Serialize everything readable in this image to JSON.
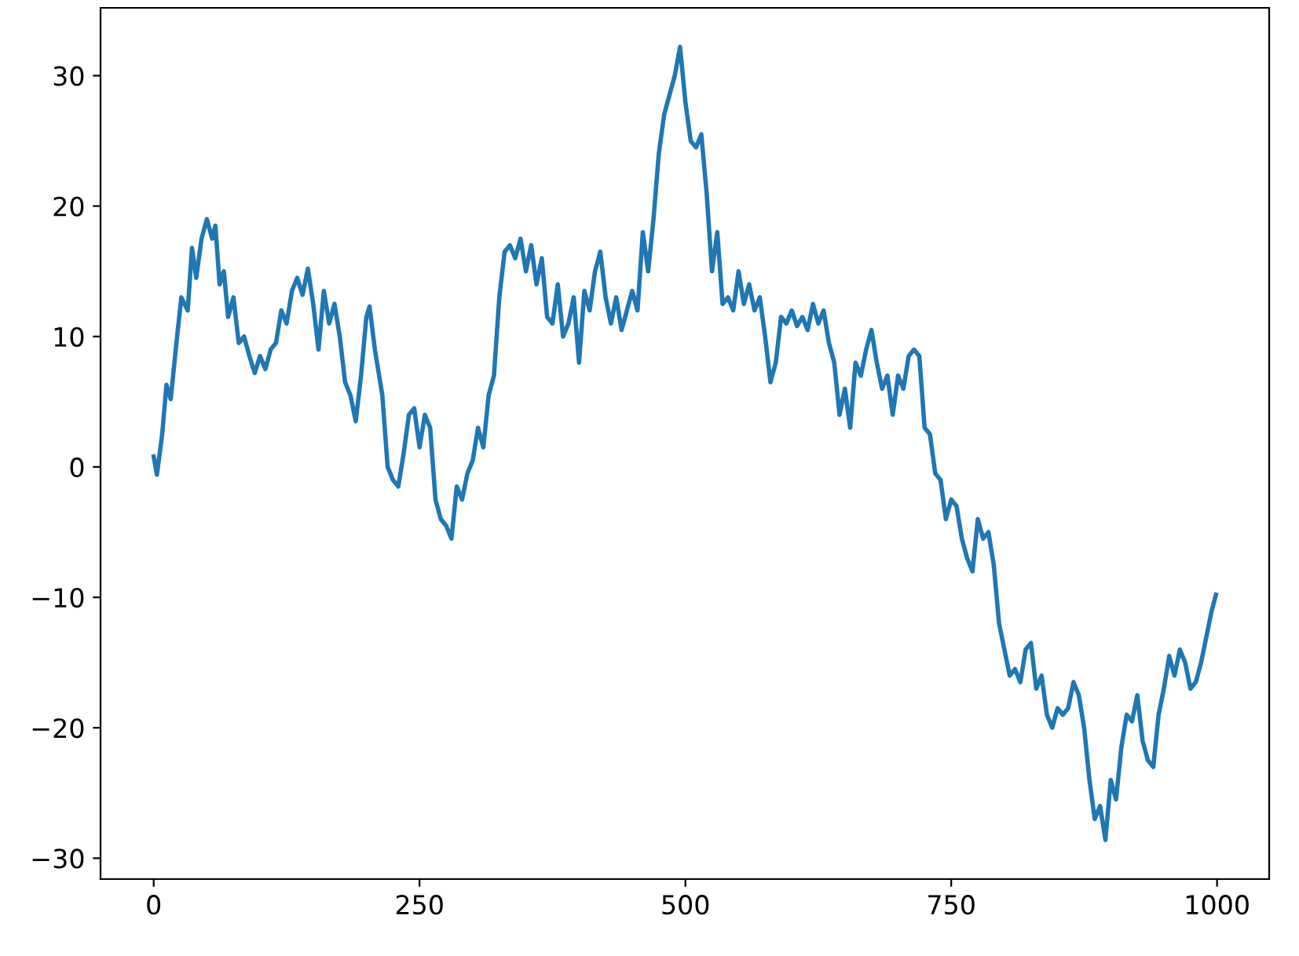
{
  "chart_data": {
    "type": "line",
    "x": [
      0,
      3,
      8,
      12,
      16,
      22,
      26,
      32,
      36,
      40,
      45,
      50,
      55,
      58,
      62,
      66,
      70,
      75,
      80,
      85,
      90,
      95,
      100,
      105,
      110,
      115,
      120,
      125,
      130,
      135,
      140,
      145,
      150,
      155,
      160,
      165,
      170,
      175,
      180,
      185,
      190,
      195,
      200,
      203,
      208,
      215,
      220,
      225,
      230,
      235,
      240,
      245,
      250,
      255,
      260,
      265,
      270,
      275,
      280,
      285,
      290,
      295,
      300,
      305,
      310,
      315,
      320,
      325,
      330,
      335,
      340,
      345,
      350,
      355,
      360,
      365,
      370,
      375,
      380,
      385,
      390,
      395,
      400,
      405,
      410,
      415,
      420,
      425,
      430,
      435,
      440,
      445,
      450,
      455,
      460,
      465,
      470,
      475,
      480,
      485,
      490,
      495,
      500,
      505,
      510,
      515,
      520,
      525,
      530,
      535,
      540,
      545,
      550,
      555,
      560,
      565,
      570,
      575,
      580,
      585,
      590,
      595,
      600,
      605,
      610,
      615,
      620,
      625,
      630,
      635,
      640,
      645,
      650,
      655,
      660,
      665,
      670,
      675,
      680,
      685,
      690,
      695,
      700,
      705,
      710,
      715,
      720,
      725,
      730,
      735,
      740,
      745,
      750,
      755,
      760,
      765,
      770,
      775,
      780,
      785,
      790,
      795,
      800,
      805,
      810,
      815,
      820,
      825,
      830,
      835,
      840,
      845,
      850,
      855,
      860,
      865,
      870,
      875,
      880,
      885,
      890,
      895,
      900,
      905,
      910,
      915,
      920,
      925,
      930,
      935,
      940,
      945,
      950,
      955,
      960,
      965,
      970,
      975,
      980,
      985,
      990,
      995,
      999
    ],
    "series": [
      {
        "color": "#1f77b4",
        "values": [
          0.8,
          -0.6,
          2.5,
          6.3,
          5.2,
          10,
          13,
          12,
          16.8,
          14.5,
          17.5,
          19,
          17.5,
          18.5,
          14,
          15,
          11.5,
          13,
          9.5,
          10,
          8.5,
          7.2,
          8.5,
          7.5,
          9,
          9.5,
          12,
          11,
          13.5,
          14.5,
          13.2,
          15.2,
          12.5,
          9,
          13.5,
          11,
          12.5,
          10,
          6.5,
          5.5,
          3.5,
          7,
          11.5,
          12.3,
          9,
          5.5,
          0,
          -1,
          -1.5,
          1,
          4,
          4.5,
          1.5,
          4,
          3,
          -2.5,
          -4,
          -4.5,
          -5.5,
          -1.5,
          -2.5,
          -0.5,
          0.5,
          3,
          1.5,
          5.5,
          7,
          13,
          16.5,
          17,
          16,
          17.5,
          15,
          17,
          14,
          16,
          11.5,
          11,
          14,
          10,
          11,
          13,
          8,
          13.5,
          12,
          15,
          16.5,
          13,
          11,
          13,
          10.5,
          12,
          13.5,
          12,
          18,
          15,
          19,
          24,
          27,
          28.5,
          30,
          32.2,
          28,
          25,
          24.5,
          25.5,
          21,
          15,
          18,
          12.5,
          13,
          12,
          15,
          12.5,
          14,
          12,
          13,
          10,
          6.5,
          8,
          11.5,
          11,
          12,
          10.8,
          11.5,
          10.5,
          12.5,
          11,
          12,
          9.5,
          8,
          4,
          6,
          3,
          8,
          7,
          9,
          10.5,
          8,
          6,
          7,
          4,
          7,
          6,
          8.5,
          9,
          8.5,
          3,
          2.5,
          -0.5,
          -1,
          -4,
          -2.5,
          -3,
          -5.5,
          -7,
          -8,
          -4,
          -5.5,
          -5,
          -7.5,
          -12,
          -14,
          -16,
          -15.5,
          -16.5,
          -14,
          -13.5,
          -17,
          -16,
          -19,
          -20,
          -18.5,
          -19,
          -18.5,
          -16.5,
          -17.5,
          -20,
          -24,
          -27,
          -26,
          -28.6,
          -24,
          -25.5,
          -21.5,
          -19,
          -19.5,
          -17.5,
          -21,
          -22.5,
          -23,
          -19,
          -17,
          -14.5,
          -16,
          -14,
          -15,
          -17,
          -16.5,
          -15,
          -13,
          -11,
          -9.8
        ]
      }
    ],
    "xlim": [
      -50,
      1049
    ],
    "ylim": [
      -31.6,
      35.2
    ],
    "xticks": [
      0,
      250,
      500,
      750,
      1000
    ],
    "yticks": [
      {
        "value": -30,
        "label": "−30"
      },
      {
        "value": -20,
        "label": "−20"
      },
      {
        "value": -10,
        "label": "−10"
      },
      0,
      10,
      20,
      30
    ],
    "grid": false
  }
}
